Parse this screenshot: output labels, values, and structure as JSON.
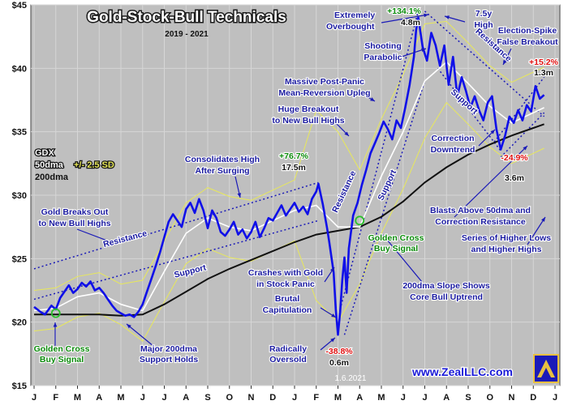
{
  "chart_data": {
    "type": "line",
    "title": "Gold-Stock-Bull Technicals",
    "subtitle": "2019 - 2021",
    "ylim": [
      15,
      45
    ],
    "y_ticks": [
      "$15",
      "$20",
      "$25",
      "$30",
      "$35",
      "$40",
      "$45"
    ],
    "x_ticks": [
      "J",
      "F",
      "M",
      "A",
      "M",
      "J",
      "J",
      "A",
      "S",
      "O",
      "N",
      "D",
      "J",
      "F",
      "M",
      "A",
      "M",
      "J",
      "J",
      "A",
      "S",
      "O",
      "N",
      "D",
      "J"
    ],
    "legend": {
      "ticker": "GDX",
      "ma50": "50dma",
      "band": "+/- 2.5 SD",
      "ma200": "200dma"
    },
    "watermark": "1.6.2021",
    "website": "www.ZealLLC.com",
    "colors": {
      "price": "#1010e8",
      "ma50": "#ffffff",
      "band": "#e8e85a",
      "ma200": "#111111",
      "trend": "#1a1ab8",
      "background": "#bfbfbf"
    },
    "series": [
      {
        "name": "GDX",
        "values": [
          [
            0,
            21.2
          ],
          [
            0.3,
            20.8
          ],
          [
            0.5,
            20.6
          ],
          [
            0.8,
            21.3
          ],
          [
            1.0,
            21.0
          ],
          [
            1.2,
            21.9
          ],
          [
            1.4,
            22.4
          ],
          [
            1.6,
            22.9
          ],
          [
            1.8,
            22.3
          ],
          [
            2.0,
            22.6
          ],
          [
            2.2,
            23.1
          ],
          [
            2.4,
            22.8
          ],
          [
            2.6,
            23.2
          ],
          [
            2.8,
            22.5
          ],
          [
            3.0,
            22.7
          ],
          [
            3.2,
            22.3
          ],
          [
            3.4,
            21.8
          ],
          [
            3.6,
            21.3
          ],
          [
            3.8,
            20.9
          ],
          [
            4.0,
            20.7
          ],
          [
            4.2,
            20.5
          ],
          [
            4.4,
            20.6
          ],
          [
            4.6,
            20.4
          ],
          [
            4.8,
            20.8
          ],
          [
            5.0,
            21.4
          ],
          [
            5.2,
            22.4
          ],
          [
            5.4,
            23.4
          ],
          [
            5.6,
            24.4
          ],
          [
            5.8,
            25.5
          ],
          [
            6.0,
            26.7
          ],
          [
            6.2,
            27.9
          ],
          [
            6.4,
            28.5
          ],
          [
            6.6,
            28.0
          ],
          [
            6.8,
            27.5
          ],
          [
            7.0,
            28.9
          ],
          [
            7.2,
            29.4
          ],
          [
            7.4,
            28.6
          ],
          [
            7.6,
            29.7
          ],
          [
            7.8,
            28.8
          ],
          [
            8.0,
            27.4
          ],
          [
            8.2,
            28.8
          ],
          [
            8.4,
            28.2
          ],
          [
            8.6,
            27.1
          ],
          [
            8.8,
            26.8
          ],
          [
            9.0,
            27.3
          ],
          [
            9.2,
            27.9
          ],
          [
            9.4,
            26.9
          ],
          [
            9.6,
            27.3
          ],
          [
            9.8,
            26.6
          ],
          [
            10.0,
            27.1
          ],
          [
            10.2,
            27.9
          ],
          [
            10.4,
            26.7
          ],
          [
            10.6,
            27.4
          ],
          [
            10.8,
            28.2
          ],
          [
            11.0,
            28.0
          ],
          [
            11.2,
            28.6
          ],
          [
            11.4,
            29.2
          ],
          [
            11.6,
            28.4
          ],
          [
            11.8,
            28.9
          ],
          [
            12.0,
            29.4
          ],
          [
            12.2,
            28.7
          ],
          [
            12.4,
            29.1
          ],
          [
            12.6,
            28.5
          ],
          [
            12.8,
            29.7
          ],
          [
            13.0,
            30.3
          ],
          [
            13.1,
            30.9
          ],
          [
            13.3,
            29.3
          ],
          [
            13.5,
            27.4
          ],
          [
            13.6,
            26.3
          ],
          [
            13.8,
            23.9
          ],
          [
            13.9,
            21.0
          ],
          [
            14.0,
            19.0
          ],
          [
            14.1,
            20.8
          ],
          [
            14.2,
            23.3
          ],
          [
            14.3,
            25.1
          ],
          [
            14.4,
            22.3
          ],
          [
            14.5,
            25.8
          ],
          [
            14.7,
            28.4
          ],
          [
            14.9,
            29.4
          ],
          [
            15.1,
            30.8
          ],
          [
            15.3,
            32.0
          ],
          [
            15.5,
            33.3
          ],
          [
            15.7,
            34.1
          ],
          [
            15.9,
            34.9
          ],
          [
            16.1,
            35.8
          ],
          [
            16.3,
            35.2
          ],
          [
            16.5,
            34.4
          ],
          [
            16.7,
            35.9
          ],
          [
            16.9,
            35.3
          ],
          [
            17.1,
            36.9
          ],
          [
            17.3,
            38.7
          ],
          [
            17.5,
            40.9
          ],
          [
            17.6,
            43.0
          ],
          [
            17.7,
            44.0
          ],
          [
            17.9,
            41.7
          ],
          [
            18.1,
            40.6
          ],
          [
            18.3,
            42.8
          ],
          [
            18.5,
            41.8
          ],
          [
            18.7,
            40.2
          ],
          [
            18.9,
            41.8
          ],
          [
            19.1,
            38.7
          ],
          [
            19.3,
            40.9
          ],
          [
            19.5,
            37.8
          ],
          [
            19.7,
            39.3
          ],
          [
            19.9,
            38.2
          ],
          [
            20.1,
            36.9
          ],
          [
            20.3,
            37.8
          ],
          [
            20.5,
            36.7
          ],
          [
            20.7,
            35.9
          ],
          [
            20.9,
            37.3
          ],
          [
            21.1,
            37.8
          ],
          [
            21.3,
            35.2
          ],
          [
            21.5,
            33.6
          ],
          [
            21.7,
            34.7
          ],
          [
            21.9,
            36.2
          ],
          [
            22.1,
            35.7
          ],
          [
            22.3,
            36.7
          ],
          [
            22.5,
            35.9
          ],
          [
            22.7,
            37.1
          ],
          [
            22.9,
            36.6
          ],
          [
            23.1,
            38.6
          ],
          [
            23.3,
            37.6
          ],
          [
            23.5,
            37.9
          ]
        ]
      },
      {
        "name": "50dma",
        "values": [
          [
            0,
            20.9
          ],
          [
            1,
            21.1
          ],
          [
            2,
            22.0
          ],
          [
            3,
            22.3
          ],
          [
            4,
            21.4
          ],
          [
            5,
            20.9
          ],
          [
            6,
            24.0
          ],
          [
            7,
            27.0
          ],
          [
            8,
            28.2
          ],
          [
            9,
            27.5
          ],
          [
            10,
            27.2
          ],
          [
            11,
            28.0
          ],
          [
            12,
            28.8
          ],
          [
            13,
            29.2
          ],
          [
            14,
            27.5
          ],
          [
            15,
            27.5
          ],
          [
            16,
            31.5
          ],
          [
            17,
            35.0
          ],
          [
            18,
            39.0
          ],
          [
            19,
            40.5
          ],
          [
            20,
            38.8
          ],
          [
            21,
            37.0
          ],
          [
            22,
            35.7
          ],
          [
            23,
            36.5
          ],
          [
            23.5,
            36.9
          ]
        ]
      },
      {
        "name": "200dma",
        "values": [
          [
            0,
            20.6
          ],
          [
            1,
            20.6
          ],
          [
            2,
            20.6
          ],
          [
            3,
            20.6
          ],
          [
            4,
            20.5
          ],
          [
            5,
            20.6
          ],
          [
            6,
            21.4
          ],
          [
            7,
            22.4
          ],
          [
            8,
            23.4
          ],
          [
            9,
            24.2
          ],
          [
            10,
            24.9
          ],
          [
            11,
            25.6
          ],
          [
            12,
            26.3
          ],
          [
            13,
            26.9
          ],
          [
            14,
            27.2
          ],
          [
            15,
            27.5
          ],
          [
            16,
            28.3
          ],
          [
            17,
            29.5
          ],
          [
            18,
            31.0
          ],
          [
            19,
            32.2
          ],
          [
            20,
            33.2
          ],
          [
            21,
            34.0
          ],
          [
            22,
            34.7
          ],
          [
            23,
            35.3
          ],
          [
            23.5,
            35.6
          ]
        ]
      }
    ],
    "annotations": [
      {
        "text": "Extremely",
        "color": "blue"
      },
      {
        "text": "Overbought",
        "color": "blue"
      },
      {
        "text": "+134.1%",
        "color": "green"
      },
      {
        "text": "4.8m",
        "color": "black"
      },
      {
        "text": "7.5y",
        "color": "blue"
      },
      {
        "text": "High",
        "color": "blue"
      },
      {
        "text": "Election-Spike",
        "color": "blue"
      },
      {
        "text": "False Breakout",
        "color": "blue"
      },
      {
        "text": "Shooting",
        "color": "blue"
      },
      {
        "text": "Parabolic",
        "color": "blue"
      },
      {
        "text": "+15.2%",
        "color": "red"
      },
      {
        "text": "1.3m",
        "color": "black"
      },
      {
        "text": "Massive Post-Panic",
        "color": "blue"
      },
      {
        "text": "Mean-Reversion Upleg",
        "color": "blue"
      },
      {
        "text": "Huge Breakout",
        "color": "blue"
      },
      {
        "text": "to New Bull Highs",
        "color": "blue"
      },
      {
        "text": "Correction",
        "color": "blue"
      },
      {
        "text": "Downtrend",
        "color": "blue"
      },
      {
        "text": "Consolidates High",
        "color": "blue"
      },
      {
        "text": "After Surging",
        "color": "blue"
      },
      {
        "text": "+76.7%",
        "color": "green"
      },
      {
        "text": "17.5m",
        "color": "black"
      },
      {
        "text": "-24.9%",
        "color": "red"
      },
      {
        "text": "3.6m",
        "color": "black"
      },
      {
        "text": "Gold Breaks Out",
        "color": "blue"
      },
      {
        "text": "to New Bull Highs",
        "color": "blue"
      },
      {
        "text": "Blasts Above 50dma and",
        "color": "blue"
      },
      {
        "text": "Correction Resistance",
        "color": "blue"
      },
      {
        "text": "Series of Higher Lows",
        "color": "blue"
      },
      {
        "text": "and Higher Highs",
        "color": "blue"
      },
      {
        "text": "Crashes with Gold",
        "color": "blue"
      },
      {
        "text": "in Stock Panic",
        "color": "blue"
      },
      {
        "text": "Golden Cross",
        "color": "green"
      },
      {
        "text": "Buy Signal",
        "color": "green"
      },
      {
        "text": "200dma Slope Shows",
        "color": "blue"
      },
      {
        "text": "Core Bull Uptrend",
        "color": "blue"
      },
      {
        "text": "Brutal",
        "color": "blue"
      },
      {
        "text": "Capitulation",
        "color": "blue"
      },
      {
        "text": "Golden Cross",
        "color": "green"
      },
      {
        "text": "Buy Signal",
        "color": "green"
      },
      {
        "text": "Major 200dma",
        "color": "blue"
      },
      {
        "text": "Support Holds",
        "color": "blue"
      },
      {
        "text": "Radically",
        "color": "blue"
      },
      {
        "text": "Oversold",
        "color": "blue"
      },
      {
        "text": "-38.8%",
        "color": "red"
      },
      {
        "text": "0.6m",
        "color": "black"
      },
      {
        "text": "Resistance",
        "color": "blue"
      },
      {
        "text": "Support",
        "color": "blue"
      },
      {
        "text": "Resistance",
        "color": "blue"
      },
      {
        "text": "Support",
        "color": "blue"
      },
      {
        "text": "Resistance",
        "color": "blue"
      },
      {
        "text": "Support",
        "color": "blue"
      }
    ]
  }
}
